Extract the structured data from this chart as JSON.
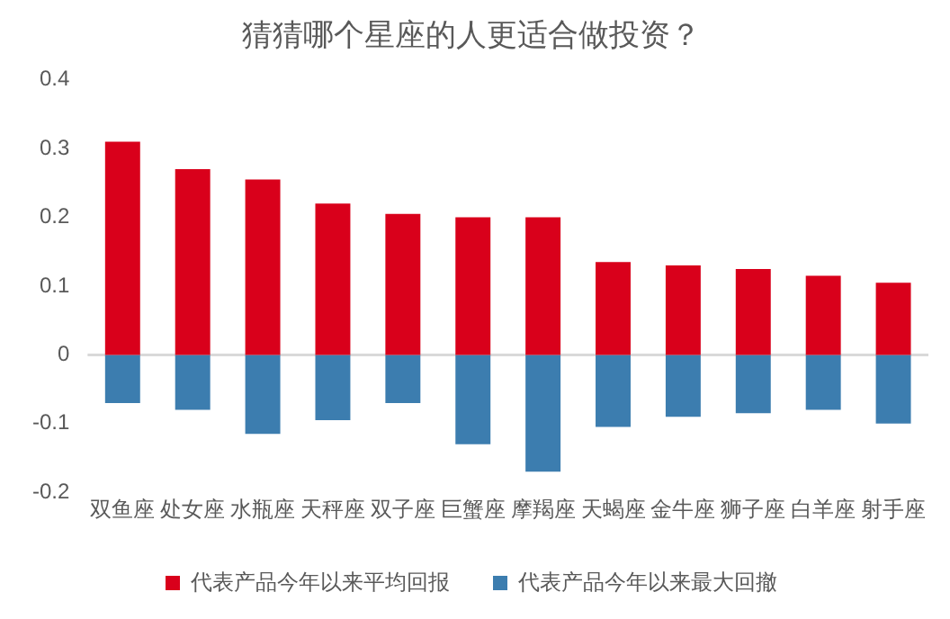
{
  "chart_data": {
    "type": "bar",
    "title": "猜猜哪个星座的人更适合做投资？",
    "categories": [
      "双鱼座",
      "处女座",
      "水瓶座",
      "天秤座",
      "双子座",
      "巨蟹座",
      "摩羯座",
      "天蝎座",
      "金牛座",
      "狮子座",
      "白羊座",
      "射手座"
    ],
    "series": [
      {
        "name": "代表产品今年以来平均回报",
        "color": "#d9001b",
        "values": [
          0.31,
          0.27,
          0.255,
          0.22,
          0.205,
          0.2,
          0.2,
          0.135,
          0.13,
          0.125,
          0.115,
          0.105
        ]
      },
      {
        "name": "代表产品今年以来最大回撤",
        "color": "#3c7daf",
        "values": [
          -0.07,
          -0.08,
          -0.115,
          -0.095,
          -0.07,
          -0.13,
          -0.17,
          -0.105,
          -0.09,
          -0.085,
          -0.08,
          -0.1
        ]
      }
    ],
    "ref_lines": [
      {
        "axis": "y",
        "value": 0,
        "color": "#d9d9d9"
      }
    ],
    "stacked": true,
    "ylim": [
      -0.2,
      0.4
    ],
    "yticks": [
      -0.2,
      -0.1,
      0,
      0.1,
      0.2,
      0.3,
      0.4
    ],
    "grid": false,
    "legend": "bottom"
  }
}
